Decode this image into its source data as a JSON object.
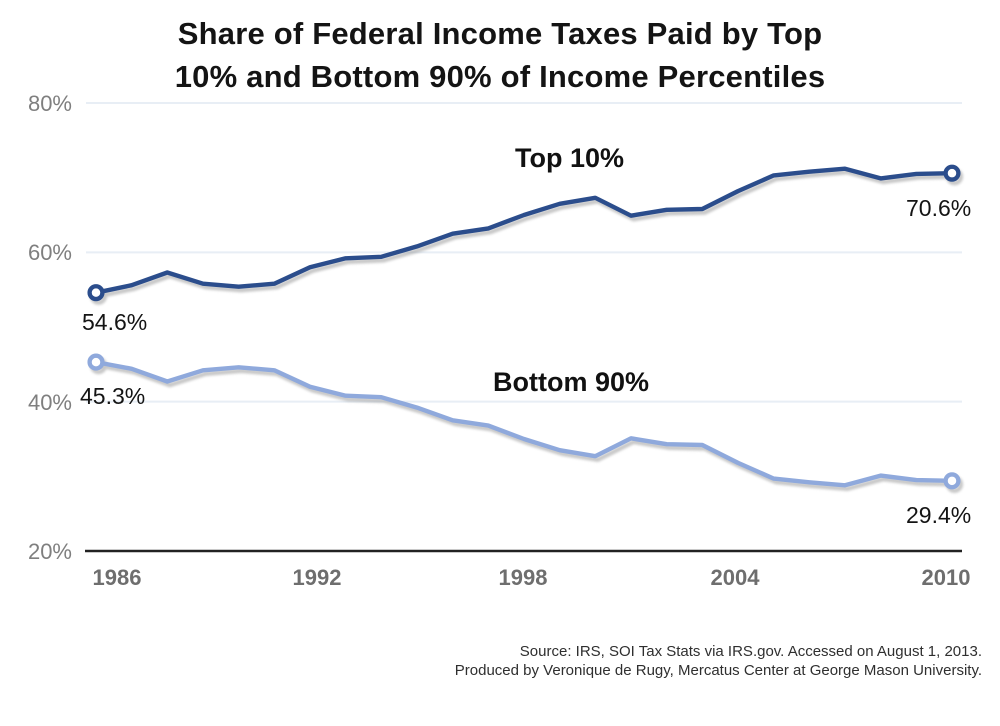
{
  "title": {
    "line1": "Share of Federal Income Taxes Paid by Top",
    "line2": "10% and Bottom 90% of Income Percentiles"
  },
  "source": {
    "line1": "Source: IRS, SOI Tax Stats via IRS.gov. Accessed on August 1, 2013.",
    "line2": "Produced by Veronique de Rugy, Mercatus Center at George Mason University."
  },
  "chart_data": {
    "type": "line",
    "title": "Share of Federal Income Taxes Paid by Top 10% and Bottom 90% of Income Percentiles",
    "x": [
      1986,
      1987,
      1988,
      1989,
      1990,
      1991,
      1992,
      1993,
      1994,
      1995,
      1996,
      1997,
      1998,
      1999,
      2000,
      2001,
      2002,
      2003,
      2004,
      2005,
      2006,
      2007,
      2008,
      2009,
      2010
    ],
    "xlim": [
      1986,
      2010
    ],
    "ylim": [
      20,
      80
    ],
    "x_tick_values": [
      1986,
      1992,
      1998,
      2004,
      2010
    ],
    "x_tick_labels": [
      "1986",
      "1992",
      "1998",
      "2004",
      "2010"
    ],
    "y_tick_values": [
      80,
      60,
      40,
      20
    ],
    "y_tick_labels": [
      "80%",
      "60%",
      "40%",
      "20%"
    ],
    "grid": "faint horizontal gridlines at 40%, 60%, 80%; solid dark baseline at 20%",
    "legend": "inline labels above each line; open-circle markers on first and last points with value labels",
    "series": [
      {
        "name": "Top 10%",
        "color": "#2b4d8c",
        "first_label": "54.6%",
        "last_label": "70.6%",
        "values": [
          54.6,
          55.6,
          57.3,
          55.8,
          55.4,
          55.8,
          58.0,
          59.2,
          59.4,
          60.8,
          62.5,
          63.2,
          65.0,
          66.5,
          67.3,
          64.9,
          65.7,
          65.8,
          68.2,
          70.3,
          70.8,
          71.2,
          69.9,
          70.5,
          70.6
        ]
      },
      {
        "name": "Bottom 90%",
        "color": "#8fa9dc",
        "first_label": "45.3%",
        "last_label": "29.4%",
        "values": [
          45.3,
          44.4,
          42.7,
          44.2,
          44.6,
          44.2,
          42.0,
          40.8,
          40.6,
          39.2,
          37.5,
          36.8,
          35.0,
          33.5,
          32.7,
          35.1,
          34.3,
          34.2,
          31.8,
          29.7,
          29.2,
          28.8,
          30.1,
          29.5,
          29.4
        ]
      }
    ],
    "style": {
      "gridline_color": "#e8eef5",
      "axis_color": "#222222",
      "shadow_color": "#8f8f8f",
      "marker_fill": "#ffffff"
    }
  }
}
